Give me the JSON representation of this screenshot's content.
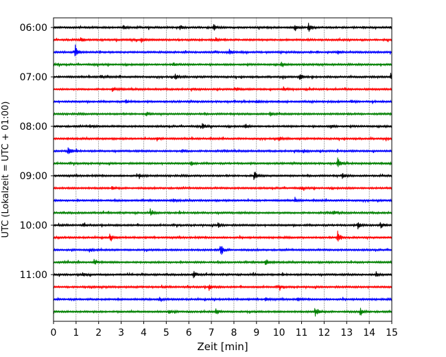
{
  "chart_data": {
    "type": "line",
    "xlabel": "Zeit  [min]",
    "ylabel": "UTC (Lokalzeit = UTC + 01:00)",
    "xlim": [
      0,
      15
    ],
    "x_ticks": [
      "0",
      "1",
      "2",
      "3",
      "4",
      "5",
      "6",
      "7",
      "8",
      "9",
      "10",
      "11",
      "12",
      "13",
      "14",
      "15"
    ],
    "y_ticks": [
      {
        "label": "06:00",
        "trace": 0
      },
      {
        "label": "07:00",
        "trace": 4
      },
      {
        "label": "08:00",
        "trace": 8
      },
      {
        "label": "09:00",
        "trace": 12
      },
      {
        "label": "10:00",
        "trace": 16
      },
      {
        "label": "11:00",
        "trace": 20
      }
    ],
    "grid": "vertical dotted at each minute",
    "trace_colors": [
      "#000000",
      "#ff0000",
      "#0000ff",
      "#008000"
    ],
    "series": [
      {
        "start": "06:00",
        "events": [
          {
            "t": 3.1,
            "a": 0.35
          },
          {
            "t": 5.6,
            "a": 0.4
          },
          {
            "t": 7.1,
            "a": 0.45
          },
          {
            "t": 10.7,
            "a": 0.5
          },
          {
            "t": 11.3,
            "a": 0.75
          }
        ]
      },
      {
        "start": "06:15",
        "events": [
          {
            "t": 1.2,
            "a": 0.3
          },
          {
            "t": 3.9,
            "a": 0.35
          },
          {
            "t": 7.2,
            "a": 0.3
          }
        ]
      },
      {
        "start": "06:30",
        "events": [
          {
            "t": 0.95,
            "a": 1.0
          },
          {
            "t": 7.8,
            "a": 0.35
          },
          {
            "t": 12.6,
            "a": 0.3
          }
        ]
      },
      {
        "start": "06:45",
        "events": [
          {
            "t": 5.3,
            "a": 0.3
          },
          {
            "t": 10.1,
            "a": 0.3
          }
        ]
      },
      {
        "start": "07:00",
        "events": [
          {
            "t": 2.1,
            "a": 0.3
          },
          {
            "t": 5.4,
            "a": 0.4
          },
          {
            "t": 10.9,
            "a": 0.5
          },
          {
            "t": 14.95,
            "a": 0.55
          }
        ]
      },
      {
        "start": "07:15",
        "events": [
          {
            "t": 2.6,
            "a": 0.3
          },
          {
            "t": 8.1,
            "a": 0.3
          },
          {
            "t": 10.2,
            "a": 0.3
          }
        ]
      },
      {
        "start": "07:30",
        "events": [
          {
            "t": 3.2,
            "a": 0.25
          },
          {
            "t": 9.0,
            "a": 0.25
          },
          {
            "t": 13.2,
            "a": 0.25
          }
        ]
      },
      {
        "start": "07:45",
        "events": [
          {
            "t": 4.1,
            "a": 0.3
          },
          {
            "t": 9.6,
            "a": 0.3
          }
        ]
      },
      {
        "start": "08:00",
        "events": [
          {
            "t": 1.6,
            "a": 0.25
          },
          {
            "t": 6.6,
            "a": 0.45
          },
          {
            "t": 8.5,
            "a": 0.3
          },
          {
            "t": 12.3,
            "a": 0.25
          }
        ]
      },
      {
        "start": "08:15",
        "events": [
          {
            "t": 4.6,
            "a": 0.3
          },
          {
            "t": 10.0,
            "a": 0.3
          }
        ]
      },
      {
        "start": "08:30",
        "events": [
          {
            "t": 0.65,
            "a": 0.75
          },
          {
            "t": 5.7,
            "a": 0.25
          },
          {
            "t": 11.1,
            "a": 0.25
          }
        ]
      },
      {
        "start": "08:45",
        "events": [
          {
            "t": 6.1,
            "a": 0.3
          },
          {
            "t": 12.6,
            "a": 0.75
          }
        ]
      },
      {
        "start": "09:00",
        "events": [
          {
            "t": 3.8,
            "a": 0.3
          },
          {
            "t": 8.9,
            "a": 0.75
          },
          {
            "t": 12.8,
            "a": 0.4
          }
        ]
      },
      {
        "start": "09:15",
        "events": [
          {
            "t": 2.6,
            "a": 0.2
          },
          {
            "t": 11.0,
            "a": 0.2
          }
        ]
      },
      {
        "start": "09:30",
        "events": [
          {
            "t": 5.3,
            "a": 0.25
          },
          {
            "t": 10.7,
            "a": 0.25
          }
        ]
      },
      {
        "start": "09:45",
        "events": [
          {
            "t": 4.3,
            "a": 0.35
          },
          {
            "t": 12.4,
            "a": 0.3
          }
        ]
      },
      {
        "start": "10:00",
        "events": [
          {
            "t": 1.3,
            "a": 0.25
          },
          {
            "t": 7.3,
            "a": 0.35
          },
          {
            "t": 13.5,
            "a": 0.55
          },
          {
            "t": 14.5,
            "a": 0.45
          }
        ]
      },
      {
        "start": "10:15",
        "events": [
          {
            "t": 2.5,
            "a": 0.55
          },
          {
            "t": 12.6,
            "a": 0.95
          }
        ]
      },
      {
        "start": "10:30",
        "events": [
          {
            "t": 1.6,
            "a": 0.3
          },
          {
            "t": 7.4,
            "a": 0.95
          }
        ]
      },
      {
        "start": "10:45",
        "events": [
          {
            "t": 1.8,
            "a": 0.35
          },
          {
            "t": 9.4,
            "a": 0.55
          }
        ]
      },
      {
        "start": "11:00",
        "events": [
          {
            "t": 1.3,
            "a": 0.25
          },
          {
            "t": 6.2,
            "a": 0.55
          },
          {
            "t": 14.3,
            "a": 0.4
          }
        ]
      },
      {
        "start": "11:15",
        "events": [
          {
            "t": 6.9,
            "a": 0.45
          },
          {
            "t": 10.0,
            "a": 0.3
          }
        ]
      },
      {
        "start": "11:30",
        "events": [
          {
            "t": 4.7,
            "a": 0.25
          },
          {
            "t": 9.4,
            "a": 0.3
          },
          {
            "t": 10.8,
            "a": 0.25
          }
        ]
      },
      {
        "start": "11:45",
        "events": [
          {
            "t": 5.1,
            "a": 0.3
          },
          {
            "t": 7.2,
            "a": 0.45
          },
          {
            "t": 11.6,
            "a": 0.75
          },
          {
            "t": 13.6,
            "a": 0.6
          }
        ]
      }
    ]
  }
}
